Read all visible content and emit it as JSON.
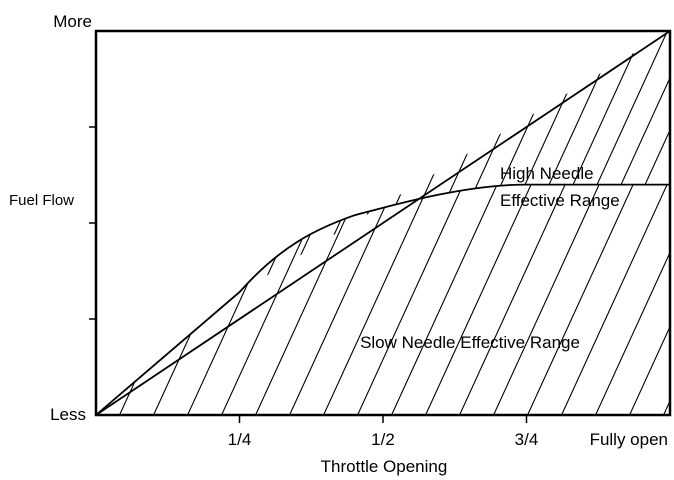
{
  "chart_data": {
    "type": "area",
    "title": "",
    "xlabel": "Throttle Opening",
    "ylabel": "Fuel Flow",
    "y_extremes": {
      "top": "More",
      "bottom": "Less"
    },
    "x_ticks": [
      "1/4",
      "1/2",
      "3/4",
      "Fully open"
    ],
    "regions": [
      {
        "label_lines": [
          "High Needle",
          "Effective Range"
        ]
      },
      {
        "label_lines": [
          "Slow Needle Effective Range"
        ]
      }
    ],
    "curves": {
      "total_fuel_flow": {
        "x": [
          0,
          1
        ],
        "y": [
          0,
          1
        ]
      },
      "slow_needle_limit": {
        "x": [
          0,
          0.25,
          0.45,
          0.75,
          1.0
        ],
        "y": [
          0,
          0.32,
          0.52,
          0.6,
          0.6
        ]
      }
    },
    "xlim": [
      0,
      1
    ],
    "ylim": [
      0,
      1
    ],
    "grid": false,
    "legend": "none",
    "colors": {
      "line": "#000000",
      "background": "#ffffff"
    }
  }
}
